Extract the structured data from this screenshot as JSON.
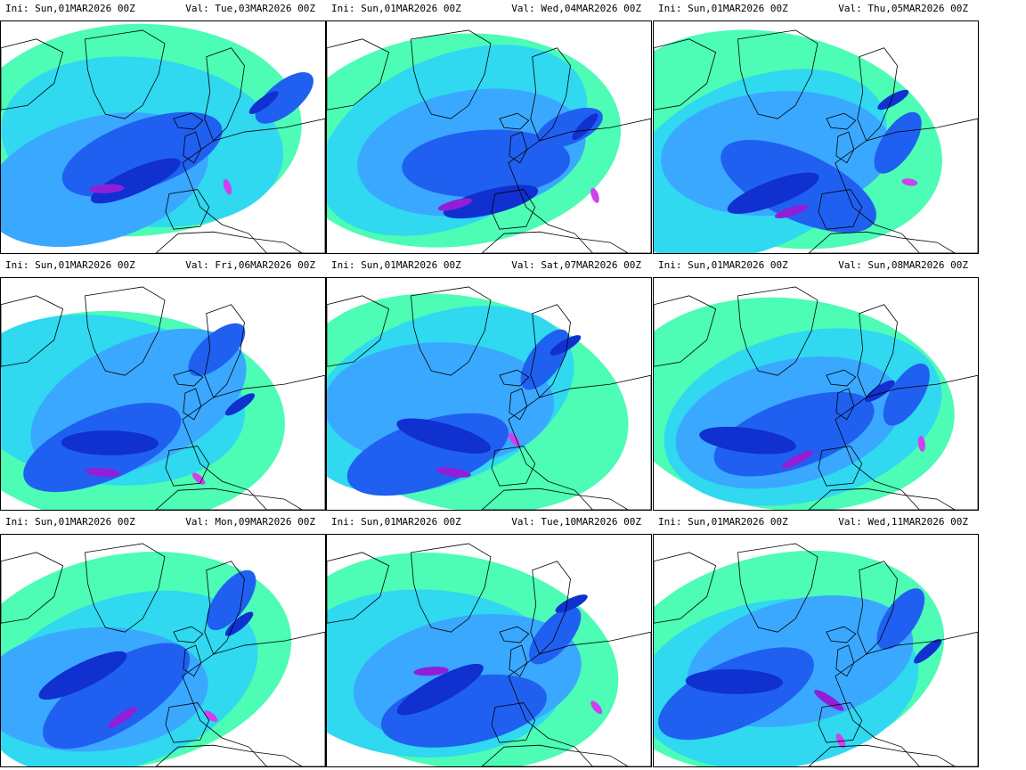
{
  "colors": {
    "light_cyan": "#4dfcb5",
    "cyan": "#30d8f0",
    "light_blue": "#3aa8ff",
    "blue": "#2060f0",
    "dark_blue": "#1030d0",
    "purple": "#9020d8",
    "magenta": "#d040f0",
    "land_outline": "#000000"
  },
  "panels": [
    {
      "ini": "Ini: Sun,01MAR2026 00Z",
      "val": "Val: Tue,03MAR2026 00Z"
    },
    {
      "ini": "Ini: Sun,01MAR2026 00Z",
      "val": "Val: Wed,04MAR2026 00Z"
    },
    {
      "ini": "Ini: Sun,01MAR2026 00Z",
      "val": "Val: Thu,05MAR2026 00Z"
    },
    {
      "ini": "Ini: Sun,01MAR2026 00Z",
      "val": "Val: Fri,06MAR2026 00Z"
    },
    {
      "ini": "Ini: Sun,01MAR2026 00Z",
      "val": "Val: Sat,07MAR2026 00Z"
    },
    {
      "ini": "Ini: Sun,01MAR2026 00Z",
      "val": "Val: Sun,08MAR2026 00Z"
    },
    {
      "ini": "Ini: Sun,01MAR2026 00Z",
      "val": "Val: Mon,09MAR2026 00Z"
    },
    {
      "ini": "Ini: Sun,01MAR2026 00Z",
      "val": "Val: Tue,10MAR2026 00Z"
    },
    {
      "ini": "Ini: Sun,01MAR2026 00Z",
      "val": "Val: Wed,11MAR2026 00Z"
    }
  ]
}
